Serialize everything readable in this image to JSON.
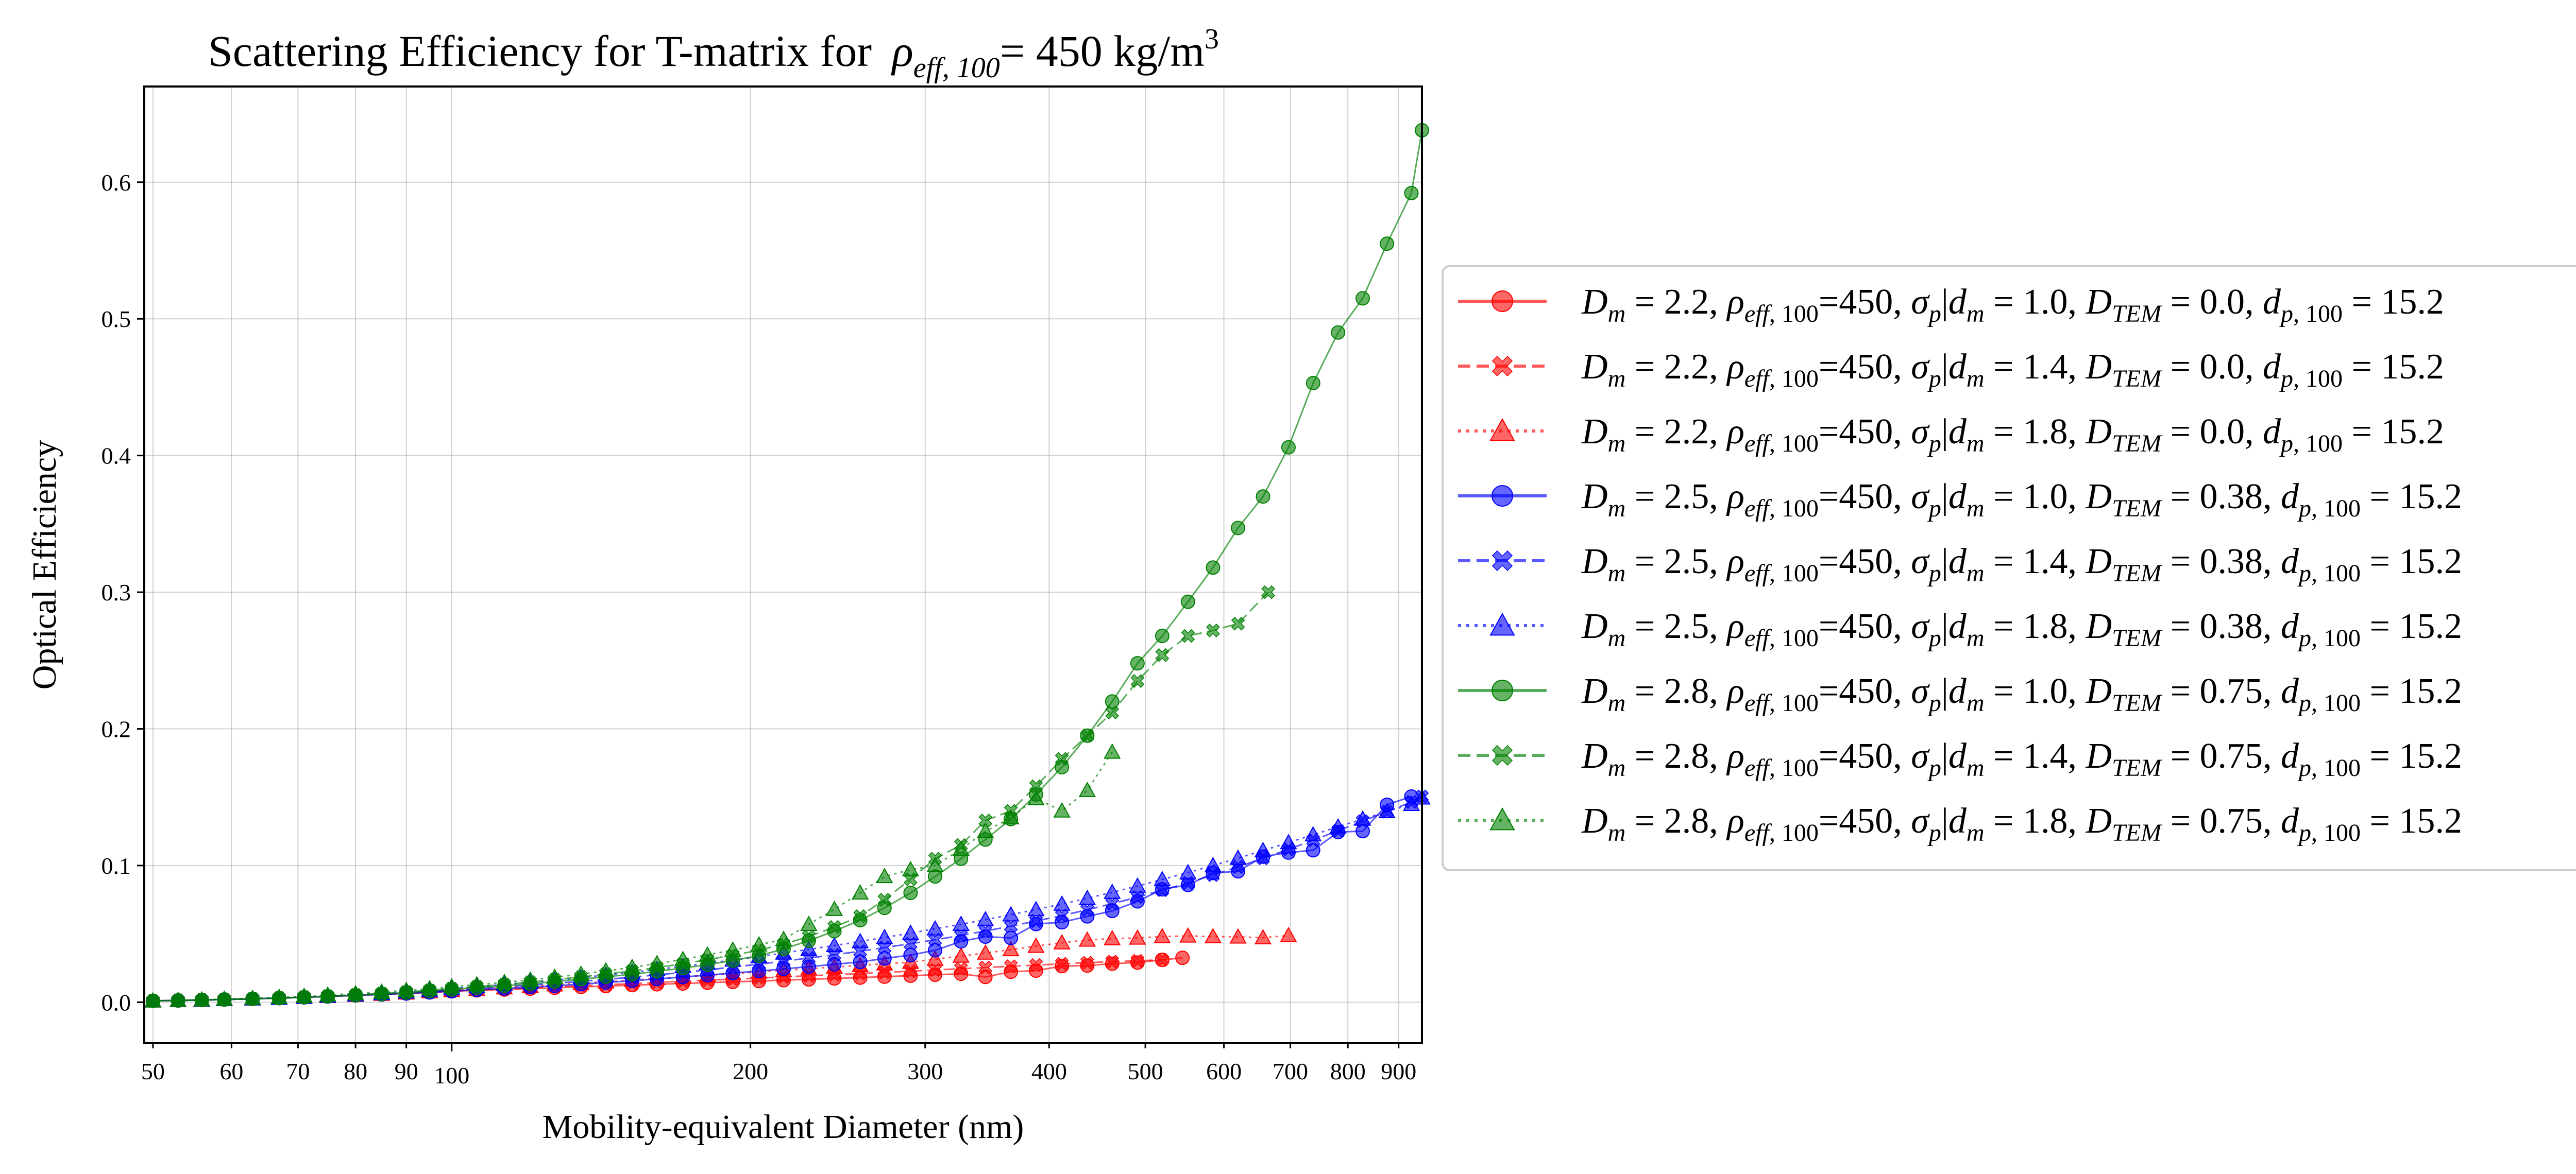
{
  "chart_data": {
    "type": "scatter",
    "title": "Scattering Efficiency for T-matrix for",
    "title_symbol": "ρ",
    "title_subscript": "eff, 100",
    "title_value": "= 450 kg/m",
    "title_superscript": "3",
    "xlabel": "Mobility-equivalent Diameter (nm)",
    "ylabel": "Optical Efficiency",
    "xscale": "log",
    "xlim": [
      49,
      950
    ],
    "ylim": [
      -0.03,
      0.67
    ],
    "x_major_ticks": [
      {
        "value": 100,
        "label": "100"
      }
    ],
    "x_minor_ticks": [
      {
        "value": 50,
        "label": "50"
      },
      {
        "value": 60,
        "label": "60"
      },
      {
        "value": 70,
        "label": "70"
      },
      {
        "value": 80,
        "label": "80"
      },
      {
        "value": 90,
        "label": "90"
      },
      {
        "value": 200,
        "label": "200"
      },
      {
        "value": 300,
        "label": "300"
      },
      {
        "value": 400,
        "label": "400"
      },
      {
        "value": 500,
        "label": "500"
      },
      {
        "value": 600,
        "label": "600"
      },
      {
        "value": 700,
        "label": "700"
      },
      {
        "value": 800,
        "label": "800"
      },
      {
        "value": 900,
        "label": "900"
      }
    ],
    "y_ticks": [
      {
        "value": 0.0,
        "label": "0.0"
      },
      {
        "value": 0.1,
        "label": "0.1"
      },
      {
        "value": 0.2,
        "label": "0.2"
      },
      {
        "value": 0.3,
        "label": "0.3"
      },
      {
        "value": 0.4,
        "label": "0.4"
      },
      {
        "value": 0.5,
        "label": "0.5"
      },
      {
        "value": 0.6,
        "label": "0.6"
      }
    ],
    "grid": true,
    "legend_position": "right, outside plot",
    "series": [
      {
        "color": "#ff0000",
        "marker": "circle",
        "dash": "solid",
        "legend": {
          "dm": "2.2",
          "rho": "450",
          "sigma": "1.0",
          "dtem": "0.0",
          "dp": "15.2"
        },
        "x": [
          50,
          53,
          56,
          59,
          63,
          67,
          71,
          75,
          80,
          85,
          90,
          95,
          100,
          106,
          113,
          120,
          127,
          135,
          143,
          152,
          161,
          171,
          181,
          192,
          204,
          216,
          229,
          243,
          258,
          273,
          290,
          307,
          326,
          345,
          366,
          388,
          412,
          437,
          463,
          491,
          520,
          545
        ],
        "y": [
          0.001,
          0.0013,
          0.0016,
          0.002,
          0.0025,
          0.003,
          0.0036,
          0.0042,
          0.005,
          0.0057,
          0.0064,
          0.0072,
          0.008,
          0.0087,
          0.0093,
          0.0099,
          0.0106,
          0.0112,
          0.0118,
          0.0125,
          0.0131,
          0.0137,
          0.0143,
          0.0149,
          0.0155,
          0.0161,
          0.0167,
          0.0174,
          0.018,
          0.0187,
          0.0194,
          0.0201,
          0.0208,
          0.0185,
          0.0223,
          0.0231,
          0.0264,
          0.0268,
          0.0282,
          0.029,
          0.031,
          0.0325
        ]
      },
      {
        "color": "#ff0000",
        "marker": "x",
        "dash": "dashed",
        "legend": {
          "dm": "2.2",
          "rho": "450",
          "sigma": "1.4",
          "dtem": "0.0",
          "dp": "15.2"
        },
        "x": [
          50,
          53,
          56,
          59,
          63,
          67,
          71,
          75,
          80,
          85,
          90,
          95,
          100,
          106,
          113,
          120,
          127,
          135,
          143,
          152,
          161,
          171,
          181,
          192,
          204,
          216,
          229,
          243,
          258,
          273,
          290,
          307,
          326,
          345,
          366,
          388,
          412,
          437,
          463,
          491,
          520
        ],
        "y": [
          0.001,
          0.0013,
          0.0016,
          0.002,
          0.0025,
          0.003,
          0.0036,
          0.0042,
          0.005,
          0.0057,
          0.0064,
          0.0072,
          0.008,
          0.0088,
          0.0096,
          0.0104,
          0.0112,
          0.012,
          0.0128,
          0.0136,
          0.0145,
          0.0153,
          0.0161,
          0.0169,
          0.0177,
          0.0185,
          0.0193,
          0.0201,
          0.021,
          0.0218,
          0.0227,
          0.0236,
          0.0245,
          0.0254,
          0.0263,
          0.0272,
          0.0281,
          0.0289,
          0.0297,
          0.0303,
          0.031
        ]
      },
      {
        "color": "#ff0000",
        "marker": "triangle",
        "dash": "dotted",
        "legend": {
          "dm": "2.2",
          "rho": "450",
          "sigma": "1.8",
          "dtem": "0.0",
          "dp": "15.2"
        },
        "x": [
          50,
          53,
          56,
          59,
          63,
          67,
          71,
          75,
          80,
          85,
          90,
          95,
          100,
          106,
          113,
          120,
          127,
          135,
          143,
          152,
          161,
          171,
          181,
          192,
          204,
          216,
          229,
          243,
          258,
          273,
          290,
          307,
          326,
          345,
          366,
          388,
          412,
          437,
          463,
          491,
          520,
          552,
          585,
          620,
          657,
          697
        ],
        "y": [
          0.001,
          0.0013,
          0.0016,
          0.002,
          0.0025,
          0.003,
          0.0036,
          0.0043,
          0.0051,
          0.0059,
          0.0068,
          0.0077,
          0.0086,
          0.0096,
          0.0106,
          0.0117,
          0.0128,
          0.0139,
          0.015,
          0.0161,
          0.0173,
          0.0185,
          0.0197,
          0.0209,
          0.0221,
          0.0233,
          0.0245,
          0.0257,
          0.0269,
          0.0281,
          0.0293,
          0.0315,
          0.0338,
          0.036,
          0.0385,
          0.041,
          0.0435,
          0.0455,
          0.0465,
          0.047,
          0.048,
          0.0485,
          0.048,
          0.0478,
          0.0472,
          0.0488
        ]
      },
      {
        "color": "#0000ff",
        "marker": "circle",
        "dash": "solid",
        "legend": {
          "dm": "2.5",
          "rho": "450",
          "sigma": "1.0",
          "dtem": "0.38",
          "dp": "15.2"
        },
        "x": [
          50,
          53,
          56,
          59,
          63,
          67,
          71,
          75,
          80,
          85,
          90,
          95,
          100,
          106,
          113,
          120,
          127,
          135,
          143,
          152,
          161,
          171,
          181,
          192,
          204,
          216,
          229,
          243,
          258,
          273,
          290,
          307,
          326,
          345,
          366,
          388,
          412,
          437,
          463,
          491,
          520,
          552,
          585,
          620,
          657,
          697,
          738,
          782,
          828,
          876,
          927
        ],
        "y": [
          0.001,
          0.0013,
          0.0016,
          0.002,
          0.0025,
          0.003,
          0.0036,
          0.0042,
          0.005,
          0.0057,
          0.0064,
          0.0072,
          0.008,
          0.009,
          0.01,
          0.011,
          0.012,
          0.0132,
          0.0144,
          0.0157,
          0.017,
          0.0184,
          0.0198,
          0.0213,
          0.0228,
          0.0244,
          0.026,
          0.0277,
          0.0295,
          0.032,
          0.0345,
          0.038,
          0.0445,
          0.048,
          0.047,
          0.0572,
          0.0585,
          0.0628,
          0.0668,
          0.0738,
          0.0826,
          0.0858,
          0.0945,
          0.0958,
          0.1065,
          0.1095,
          0.1112,
          0.1245,
          0.1252,
          0.1445,
          0.1505
        ]
      },
      {
        "color": "#0000ff",
        "marker": "x",
        "dash": "dashed",
        "legend": {
          "dm": "2.5",
          "rho": "450",
          "sigma": "1.4",
          "dtem": "0.38",
          "dp": "15.2"
        },
        "x": [
          50,
          53,
          56,
          59,
          63,
          67,
          71,
          75,
          80,
          85,
          90,
          95,
          100,
          106,
          113,
          120,
          127,
          135,
          143,
          152,
          161,
          171,
          181,
          192,
          204,
          216,
          229,
          243,
          258,
          273,
          290,
          307,
          326,
          345,
          366,
          388,
          412,
          437,
          463,
          491,
          520,
          552,
          585,
          620,
          657,
          697,
          738,
          782,
          828,
          876,
          927,
          950
        ],
        "y": [
          0.001,
          0.0013,
          0.0016,
          0.002,
          0.0025,
          0.003,
          0.0036,
          0.0043,
          0.0051,
          0.0059,
          0.0068,
          0.0078,
          0.0089,
          0.01,
          0.0112,
          0.0125,
          0.0138,
          0.0152,
          0.0167,
          0.0183,
          0.02,
          0.0218,
          0.0237,
          0.0257,
          0.0278,
          0.03,
          0.0323,
          0.0347,
          0.0373,
          0.04,
          0.0428,
          0.0457,
          0.0488,
          0.0521,
          0.0556,
          0.0594,
          0.0634,
          0.0676,
          0.0721,
          0.0769,
          0.082,
          0.0873,
          0.093,
          0.099,
          0.1053,
          0.1119,
          0.1185,
          0.1255,
          0.1325,
          0.1395,
          0.1465,
          0.1505
        ]
      },
      {
        "color": "#0000ff",
        "marker": "triangle",
        "dash": "dotted",
        "legend": {
          "dm": "2.5",
          "rho": "450",
          "sigma": "1.8",
          "dtem": "0.38",
          "dp": "15.2"
        },
        "x": [
          50,
          53,
          56,
          59,
          63,
          67,
          71,
          75,
          80,
          85,
          90,
          95,
          100,
          106,
          113,
          120,
          127,
          135,
          143,
          152,
          161,
          171,
          181,
          192,
          204,
          216,
          229,
          243,
          258,
          273,
          290,
          307,
          326,
          345,
          366,
          388,
          412,
          437,
          463,
          491,
          520,
          552,
          585,
          620,
          657,
          697,
          738,
          782,
          828,
          876,
          927,
          950
        ],
        "y": [
          0.001,
          0.0013,
          0.0016,
          0.002,
          0.0025,
          0.003,
          0.0037,
          0.0045,
          0.0054,
          0.0064,
          0.0075,
          0.0087,
          0.01,
          0.0114,
          0.0129,
          0.0145,
          0.0162,
          0.018,
          0.0199,
          0.0219,
          0.024,
          0.0262,
          0.0285,
          0.0309,
          0.0334,
          0.036,
          0.0387,
          0.0415,
          0.0444,
          0.0474,
          0.0505,
          0.0537,
          0.057,
          0.0604,
          0.064,
          0.0678,
          0.0718,
          0.076,
          0.0804,
          0.085,
          0.0898,
          0.0948,
          0.1,
          0.1054,
          0.111,
          0.1168,
          0.1225,
          0.1283,
          0.134,
          0.1395,
          0.1448,
          0.1495
        ]
      },
      {
        "color": "#008000",
        "marker": "circle",
        "dash": "solid",
        "legend": {
          "dm": "2.8",
          "rho": "450",
          "sigma": "1.0",
          "dtem": "0.75",
          "dp": "15.2"
        },
        "x": [
          50,
          53,
          56,
          59,
          63,
          67,
          71,
          75,
          80,
          85,
          90,
          95,
          100,
          106,
          113,
          120,
          127,
          135,
          143,
          152,
          161,
          171,
          181,
          192,
          204,
          216,
          229,
          243,
          258,
          273,
          290,
          307,
          326,
          345,
          366,
          388,
          412,
          437,
          463,
          491,
          520,
          552,
          585,
          620,
          657,
          697,
          738,
          782,
          828,
          876,
          927,
          950
        ],
        "y": [
          0.001,
          0.0013,
          0.0016,
          0.002,
          0.0025,
          0.003,
          0.0036,
          0.0043,
          0.0051,
          0.006,
          0.007,
          0.0081,
          0.0093,
          0.0106,
          0.012,
          0.0135,
          0.0151,
          0.0168,
          0.0186,
          0.0205,
          0.0226,
          0.0249,
          0.0275,
          0.0305,
          0.034,
          0.039,
          0.045,
          0.052,
          0.06,
          0.069,
          0.08,
          0.092,
          0.105,
          0.119,
          0.134,
          0.152,
          0.172,
          0.195,
          0.22,
          0.248,
          0.268,
          0.293,
          0.318,
          0.347,
          0.37,
          0.406,
          0.453,
          0.49,
          0.515,
          0.555,
          0.592,
          0.638
        ]
      },
      {
        "color": "#008000",
        "marker": "x",
        "dash": "dashed",
        "legend": {
          "dm": "2.8",
          "rho": "450",
          "sigma": "1.4",
          "dtem": "0.75",
          "dp": "15.2"
        },
        "x": [
          50,
          53,
          56,
          59,
          63,
          67,
          71,
          75,
          80,
          85,
          90,
          95,
          100,
          106,
          113,
          120,
          127,
          135,
          143,
          152,
          161,
          171,
          181,
          192,
          204,
          216,
          229,
          243,
          258,
          273,
          290,
          307,
          326,
          345,
          366,
          388,
          412,
          437,
          463,
          491,
          520,
          552,
          585,
          620,
          665
        ],
        "y": [
          0.001,
          0.0013,
          0.0016,
          0.002,
          0.0025,
          0.003,
          0.0037,
          0.0045,
          0.0054,
          0.0064,
          0.0075,
          0.0087,
          0.01,
          0.0114,
          0.013,
          0.0147,
          0.0165,
          0.0185,
          0.0206,
          0.0229,
          0.0254,
          0.0281,
          0.0311,
          0.0344,
          0.038,
          0.0425,
          0.048,
          0.055,
          0.063,
          0.075,
          0.09,
          0.105,
          0.115,
          0.133,
          0.14,
          0.158,
          0.178,
          0.195,
          0.212,
          0.235,
          0.254,
          0.268,
          0.272,
          0.277,
          0.3
        ]
      },
      {
        "color": "#008000",
        "marker": "triangle",
        "dash": "dotted",
        "legend": {
          "dm": "2.8",
          "rho": "450",
          "sigma": "1.8",
          "dtem": "0.75",
          "dp": "15.2"
        },
        "x": [
          50,
          53,
          56,
          59,
          63,
          67,
          71,
          75,
          80,
          85,
          90,
          95,
          100,
          106,
          113,
          120,
          127,
          135,
          143,
          152,
          161,
          171,
          181,
          192,
          204,
          216,
          229,
          243,
          258,
          273,
          290,
          307,
          326,
          345,
          366,
          388,
          412,
          437,
          463
        ],
        "y": [
          0.001,
          0.0014,
          0.0018,
          0.0023,
          0.0029,
          0.0036,
          0.0044,
          0.0053,
          0.0063,
          0.0074,
          0.0086,
          0.0099,
          0.0113,
          0.0128,
          0.0145,
          0.0163,
          0.0183,
          0.0205,
          0.0229,
          0.0255,
          0.0283,
          0.0313,
          0.0346,
          0.0382,
          0.042,
          0.046,
          0.057,
          0.068,
          0.08,
          0.092,
          0.097,
          0.1,
          0.112,
          0.125,
          0.135,
          0.149,
          0.14,
          0.155,
          0.183
        ]
      }
    ]
  }
}
